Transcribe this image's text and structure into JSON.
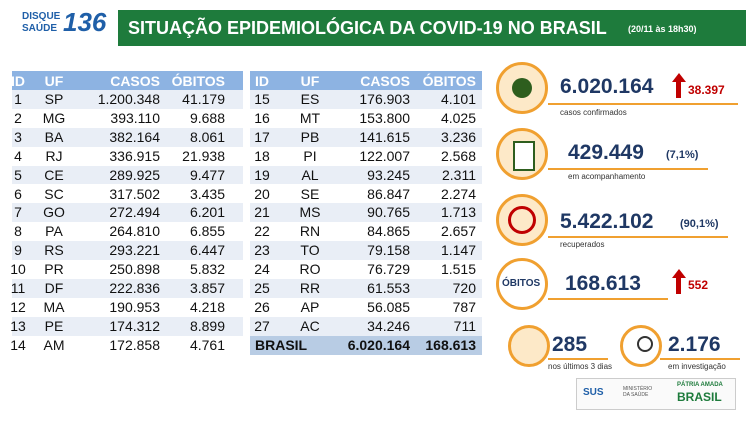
{
  "header": {
    "logo": {
      "line1": "DISQUE",
      "line2": "SAÚDE",
      "number": "136"
    },
    "title": "SITUAÇÃO EPIDEMIOLÓGICA DA COVID-19 NO BRASIL",
    "date": "(20/11 às 18h30)"
  },
  "table_left": {
    "columns": [
      "ID",
      "UF",
      "CASOS",
      "ÓBITOS"
    ],
    "rows": [
      [
        "1",
        "SP",
        "1.200.348",
        "41.179"
      ],
      [
        "2",
        "MG",
        "393.110",
        "9.688"
      ],
      [
        "3",
        "BA",
        "382.164",
        "8.061"
      ],
      [
        "4",
        "RJ",
        "336.915",
        "21.938"
      ],
      [
        "5",
        "CE",
        "289.925",
        "9.477"
      ],
      [
        "6",
        "SC",
        "317.502",
        "3.435"
      ],
      [
        "7",
        "GO",
        "272.494",
        "6.201"
      ],
      [
        "8",
        "PA",
        "264.810",
        "6.855"
      ],
      [
        "9",
        "RS",
        "293.221",
        "6.447"
      ],
      [
        "10",
        "PR",
        "250.898",
        "5.832"
      ],
      [
        "11",
        "DF",
        "222.836",
        "3.857"
      ],
      [
        "12",
        "MA",
        "190.953",
        "4.218"
      ],
      [
        "13",
        "PE",
        "174.312",
        "8.899"
      ],
      [
        "14",
        "AM",
        "172.858",
        "4.761"
      ]
    ]
  },
  "table_right": {
    "columns": [
      "ID",
      "UF",
      "CASOS",
      "ÓBITOS"
    ],
    "rows": [
      [
        "15",
        "ES",
        "176.903",
        "4.101"
      ],
      [
        "16",
        "MT",
        "153.800",
        "4.025"
      ],
      [
        "17",
        "PB",
        "141.615",
        "3.236"
      ],
      [
        "18",
        "PI",
        "122.007",
        "2.568"
      ],
      [
        "19",
        "AL",
        "93.245",
        "2.311"
      ],
      [
        "20",
        "SE",
        "86.847",
        "2.274"
      ],
      [
        "21",
        "MS",
        "90.765",
        "1.713"
      ],
      [
        "22",
        "RN",
        "84.865",
        "2.657"
      ],
      [
        "23",
        "TO",
        "79.158",
        "1.147"
      ],
      [
        "24",
        "RO",
        "76.729",
        "1.515"
      ],
      [
        "25",
        "RR",
        "61.553",
        "720"
      ],
      [
        "26",
        "AP",
        "56.085",
        "787"
      ],
      [
        "27",
        "AC",
        "34.246",
        "711"
      ]
    ],
    "total": [
      "BRASIL",
      "6.020.164",
      "168.613"
    ]
  },
  "stats": {
    "confirmed": {
      "value": "6.020.164",
      "delta": "38.397",
      "label": "casos confirmados"
    },
    "monitoring": {
      "value": "429.449",
      "percent": "(7,1%)",
      "label": "em acompanhamento"
    },
    "recovered": {
      "value": "5.422.102",
      "percent": "(90,1%)",
      "label": "recuperados"
    },
    "deaths": {
      "badge": "ÓBITOS",
      "value": "168.613",
      "delta": "552"
    },
    "recent": {
      "value": "285",
      "label": "nos últimos 3 dias"
    },
    "investigation": {
      "value": "2.176",
      "label": "em investigação"
    }
  },
  "footer": {
    "sus": "SUS",
    "ministry": "MINISTÉRIO DA SAÚDE",
    "motto": "PÁTRIA AMADA",
    "country": "BRASIL"
  }
}
